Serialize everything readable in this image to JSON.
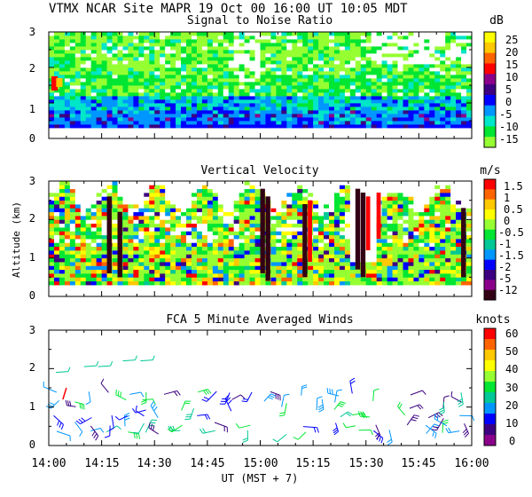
{
  "header": {
    "title": "VTMX  NCAR Site  MAPR 19 Oct 00  16:00 UT  10:05  MDT"
  },
  "x_axis": {
    "ticks": [
      "14:00",
      "14:15",
      "14:30",
      "14:45",
      "15:00",
      "15:15",
      "15:30",
      "15:45",
      "16:00"
    ],
    "label": "UT  (MST + 7)",
    "range_minutes": [
      0,
      120
    ]
  },
  "shared_ylabel": "Altitude (km)",
  "chart_data": [
    {
      "type": "heatmap",
      "title": "Signal to Noise Ratio",
      "unit": "dB",
      "y_ticks": [
        "0",
        "1",
        "2",
        "3"
      ],
      "ylim": [
        0,
        3
      ],
      "colorbar": {
        "labels": [
          "25",
          "20",
          "15",
          "10",
          "5",
          "0",
          "-5",
          "-10",
          "-15"
        ],
        "colors": [
          "#ffff00",
          "#ffc800",
          "#ff6400",
          "#ff0000",
          "#8b008b",
          "#3c0080",
          "#0000ff",
          "#0096ff",
          "#00e6c8",
          "#00e632",
          "#96ff32"
        ]
      }
    },
    {
      "type": "heatmap",
      "title": "Vertical Velocity",
      "unit": "m/s",
      "y_ticks": [
        "0",
        "1",
        "2",
        "3"
      ],
      "ylim": [
        0,
        3
      ],
      "colorbar": {
        "labels": [
          "1.5",
          "1",
          "0.5",
          "0",
          "-0.5",
          "-1",
          "-1.5",
          "-2",
          "-5",
          "-12"
        ],
        "colors": [
          "#ff0000",
          "#ff6400",
          "#ffc800",
          "#ffff00",
          "#96ff32",
          "#00e632",
          "#00c896",
          "#0096ff",
          "#0000ff",
          "#3c0080",
          "#8b008b",
          "#320014"
        ]
      }
    },
    {
      "type": "scatter",
      "title": "FCA 5 Minute Averaged Winds",
      "unit": "knots",
      "y_ticks": [
        "0",
        "1",
        "2",
        "3"
      ],
      "ylim": [
        0,
        3
      ],
      "colorbar": {
        "labels": [
          "60",
          "50",
          "40",
          "30",
          "20",
          "10",
          "0"
        ],
        "colors": [
          "#ff0000",
          "#ff6400",
          "#ffc800",
          "#ffff00",
          "#96ff32",
          "#00e632",
          "#00c896",
          "#0096ff",
          "#0000ff",
          "#3c0080",
          "#8b008b"
        ]
      }
    }
  ]
}
